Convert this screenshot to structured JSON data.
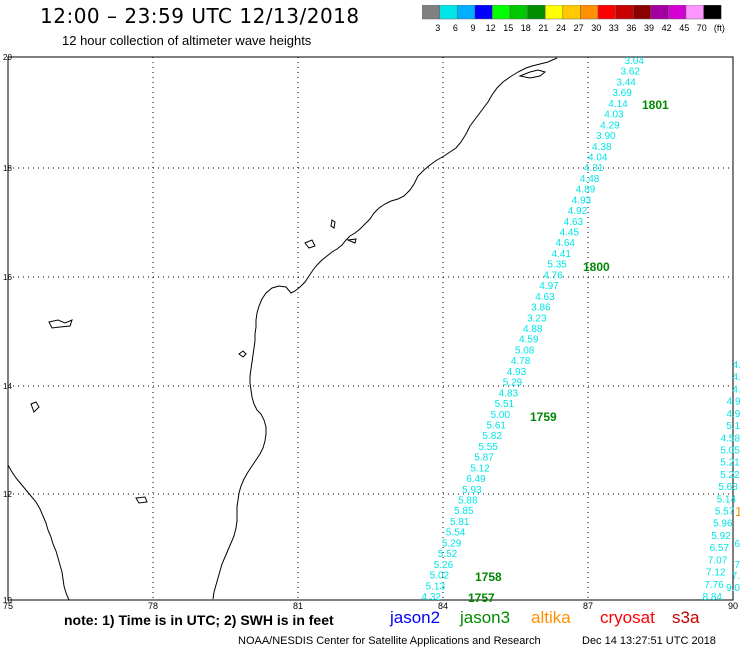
{
  "title": "12:00 – 23:59 UTC 12/13/2018",
  "subtitle": "12 hour collection of altimeter wave heights",
  "colorbar": {
    "colors": [
      "#808080",
      "#00e6e6",
      "#00b0ff",
      "#0000ff",
      "#00ff00",
      "#00c800",
      "#008c00",
      "#ffff00",
      "#ffc800",
      "#ff9100",
      "#ff0000",
      "#c80000",
      "#8c0000",
      "#a000a0",
      "#d200d2",
      "#ff96ff",
      "#000000"
    ],
    "labels": [
      "3",
      "6",
      "9",
      "12",
      "15",
      "18",
      "21",
      "24",
      "27",
      "30",
      "33",
      "36",
      "39",
      "42",
      "45",
      "70",
      "(ft)"
    ]
  },
  "axis": {
    "lon_labels": [
      "75",
      "78",
      "81",
      "84",
      "87",
      "90"
    ],
    "lat_labels": [
      "20",
      "18",
      "16",
      "14",
      "12",
      "10"
    ]
  },
  "track_color": "#00e6e6",
  "time_color": "#008800",
  "main_track": [
    {
      "v": "3.04"
    },
    {
      "v": "3.62"
    },
    {
      "v": "3.44"
    },
    {
      "v": "3.69"
    },
    {
      "v": "4.14"
    },
    {
      "v": "4.03"
    },
    {
      "v": "4.29"
    },
    {
      "v": "3.90"
    },
    {
      "v": "4.38"
    },
    {
      "v": "4.04"
    },
    {
      "v": "4.31"
    },
    {
      "v": "4.48"
    },
    {
      "v": "4.89"
    },
    {
      "v": "4.93"
    },
    {
      "v": "4.92"
    },
    {
      "v": "4.63"
    },
    {
      "v": "4.45"
    },
    {
      "v": "4.64"
    },
    {
      "v": "4.41"
    },
    {
      "v": "5.35"
    },
    {
      "v": "4.76"
    },
    {
      "v": "4.97"
    },
    {
      "v": "4.63"
    },
    {
      "v": "3.86"
    },
    {
      "v": "3.23"
    },
    {
      "v": "4.88"
    },
    {
      "v": "4.59"
    },
    {
      "v": "5.08"
    },
    {
      "v": "4.78"
    },
    {
      "v": "4.93"
    },
    {
      "v": "5.29"
    },
    {
      "v": "4.83"
    },
    {
      "v": "5.51"
    },
    {
      "v": "5.00"
    },
    {
      "v": "5.61"
    },
    {
      "v": "5.82"
    },
    {
      "v": "5.55"
    },
    {
      "v": "5.87"
    },
    {
      "v": "5.12"
    },
    {
      "v": "6.49"
    },
    {
      "v": "5.93"
    },
    {
      "v": "5.88"
    },
    {
      "v": "5.85"
    },
    {
      "v": "5.81"
    },
    {
      "v": "5.54"
    },
    {
      "v": "5.29"
    },
    {
      "v": "5.52"
    },
    {
      "v": "5.26"
    },
    {
      "v": "5.02"
    },
    {
      "v": "5.13"
    },
    {
      "v": "4.32"
    }
  ],
  "right_track": [
    {
      "v": "4."
    },
    {
      "v": "4."
    },
    {
      "v": "4."
    },
    {
      "v": "4.9"
    },
    {
      "v": "4.9"
    },
    {
      "v": "5.1"
    },
    {
      "v": "4.58"
    },
    {
      "v": "5.05"
    },
    {
      "v": "5.21"
    },
    {
      "v": "5.22"
    },
    {
      "v": "5.63"
    },
    {
      "v": "5.14"
    },
    {
      "v": "5.57"
    },
    {
      "v": "5.96"
    },
    {
      "v": "5.92"
    },
    {
      "v": "6.57"
    },
    {
      "v": "7.07"
    },
    {
      "v": "7.12"
    },
    {
      "v": "7.76"
    },
    {
      "v": "8.84"
    }
  ],
  "right_partial": [
    {
      "v": "6"
    },
    {
      "v": "7"
    },
    {
      "v": "7."
    },
    {
      "v": "9.0"
    }
  ],
  "time_labels": [
    "1801",
    "1800",
    "1759",
    "1758",
    "1757"
  ],
  "edge_mark": "1",
  "footer": {
    "note": "note: 1) Time is in UTC; 2) SWH is in feet",
    "satellites": [
      {
        "name": "jason2",
        "color": "#0000ff"
      },
      {
        "name": "jason3",
        "color": "#008c00"
      },
      {
        "name": "altika",
        "color": "#ff9100"
      },
      {
        "name": "cryosat",
        "color": "#ff0000"
      },
      {
        "name": "s3a",
        "color": "#c80000"
      }
    ],
    "credit": "NOAA/NESDIS Center for Satellite Applications and Research",
    "stamp": "Dec 14 13:27:51 UTC 2018"
  }
}
